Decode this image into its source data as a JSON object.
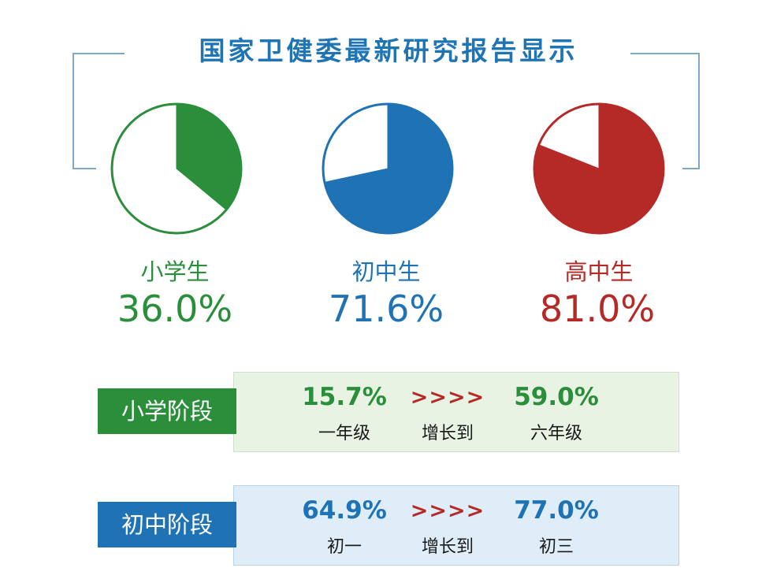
{
  "title": "国家卫健委最新研究报告显示",
  "colors": {
    "primary": "#2a8e3b",
    "middle": "#1f73b4",
    "high": "#b52a27"
  },
  "chart_data": {
    "type": "pie",
    "title": "国家卫健委最新研究报告显示",
    "pies": [
      {
        "label": "小学生",
        "value": 36.0,
        "value_text": "36.0%",
        "color": "#2a8e3b"
      },
      {
        "label": "初中生",
        "value": 71.6,
        "value_text": "71.6%",
        "color": "#1f73b4"
      },
      {
        "label": "高中生",
        "value": 81.0,
        "value_text": "81.0%",
        "color": "#b52a27"
      }
    ]
  },
  "stages": [
    {
      "tag": "小学阶段",
      "from_value": "15.7%",
      "from_label": "一年级",
      "arrows": ">>>>",
      "mid_label": "增长到",
      "to_value": "59.0%",
      "to_label": "六年级"
    },
    {
      "tag": "初中阶段",
      "from_value": "64.9%",
      "from_label": "初一",
      "arrows": ">>>>",
      "mid_label": "增长到",
      "to_value": "77.0%",
      "to_label": "初三"
    }
  ]
}
